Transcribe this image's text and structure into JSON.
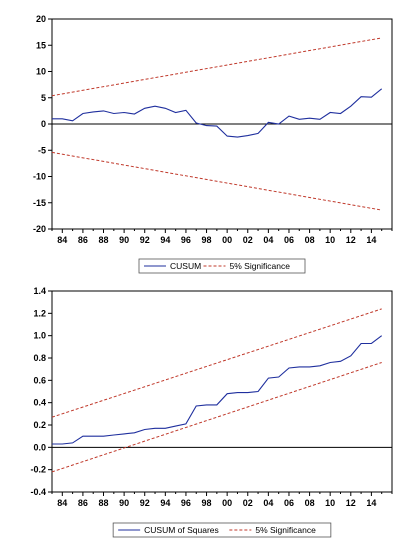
{
  "chart_data": [
    {
      "type": "line",
      "title": "",
      "xlabel": "",
      "ylabel": "",
      "ylim": [
        -20,
        20
      ],
      "xlim": [
        1983,
        2016
      ],
      "y_ticks": [
        -20,
        -15,
        -10,
        -5,
        0,
        5,
        10,
        15,
        20
      ],
      "x_ticks": [
        "84",
        "86",
        "88",
        "90",
        "92",
        "94",
        "96",
        "98",
        "00",
        "02",
        "04",
        "06",
        "08",
        "10",
        "12",
        "14"
      ],
      "x_tick_years": [
        1984,
        1986,
        1988,
        1990,
        1992,
        1994,
        1996,
        1998,
        2000,
        2002,
        2004,
        2006,
        2008,
        2010,
        2012,
        2014
      ],
      "legend_position": "bottom-center",
      "zero_line": true,
      "colors": {
        "series": "#1f2f9e",
        "band": "#c0392b",
        "axis": "#000000"
      },
      "series": [
        {
          "name": "CUSUM",
          "style": "solid",
          "x": [
            1983,
            1984,
            1985,
            1986,
            1987,
            1988,
            1989,
            1990,
            1991,
            1992,
            1993,
            1994,
            1995,
            1996,
            1997,
            1998,
            1999,
            2000,
            2001,
            2002,
            2003,
            2004,
            2005,
            2006,
            2007,
            2008,
            2009,
            2010,
            2011,
            2012,
            2013,
            2014,
            2015
          ],
          "y": [
            1.0,
            1.0,
            0.6,
            2.0,
            2.3,
            2.5,
            2.0,
            2.2,
            1.9,
            3.0,
            3.4,
            3.0,
            2.2,
            2.6,
            0.2,
            -0.3,
            -0.4,
            -2.3,
            -2.5,
            -2.2,
            -1.8,
            0.3,
            0.0,
            1.5,
            0.9,
            1.1,
            0.9,
            2.2,
            2.0,
            3.4,
            5.2,
            5.1,
            6.7
          ]
        },
        {
          "name": "5% Significance",
          "style": "dashed",
          "x": [
            1983,
            2015
          ],
          "y": [
            5.4,
            16.4
          ]
        },
        {
          "name": "5% Significance",
          "style": "dashed",
          "show_in_legend": false,
          "x": [
            1983,
            2015
          ],
          "y": [
            -5.4,
            -16.4
          ]
        }
      ]
    },
    {
      "type": "line",
      "title": "",
      "xlabel": "",
      "ylabel": "",
      "ylim": [
        -0.4,
        1.4
      ],
      "xlim": [
        1983,
        2016
      ],
      "y_ticks": [
        "-0.4",
        "-0.2",
        "0.0",
        "0.2",
        "0.4",
        "0.6",
        "0.8",
        "1.0",
        "1.2",
        "1.4"
      ],
      "y_tick_values": [
        -0.4,
        -0.2,
        0.0,
        0.2,
        0.4,
        0.6,
        0.8,
        1.0,
        1.2,
        1.4
      ],
      "x_ticks": [
        "84",
        "86",
        "88",
        "90",
        "92",
        "94",
        "96",
        "98",
        "00",
        "02",
        "04",
        "06",
        "08",
        "10",
        "12",
        "14"
      ],
      "x_tick_years": [
        1984,
        1986,
        1988,
        1990,
        1992,
        1994,
        1996,
        1998,
        2000,
        2002,
        2004,
        2006,
        2008,
        2010,
        2012,
        2014
      ],
      "legend_position": "bottom-center",
      "zero_line": true,
      "colors": {
        "series": "#1f2f9e",
        "band": "#c0392b",
        "axis": "#000000"
      },
      "series": [
        {
          "name": "CUSUM of Squares",
          "style": "solid",
          "x": [
            1983,
            1984,
            1985,
            1986,
            1987,
            1988,
            1989,
            1990,
            1991,
            1992,
            1993,
            1994,
            1995,
            1996,
            1997,
            1998,
            1999,
            2000,
            2001,
            2002,
            2003,
            2004,
            2005,
            2006,
            2007,
            2008,
            2009,
            2010,
            2011,
            2012,
            2013,
            2014,
            2015
          ],
          "y": [
            0.03,
            0.03,
            0.04,
            0.1,
            0.1,
            0.1,
            0.11,
            0.12,
            0.13,
            0.16,
            0.17,
            0.17,
            0.19,
            0.21,
            0.37,
            0.38,
            0.38,
            0.48,
            0.49,
            0.49,
            0.5,
            0.62,
            0.63,
            0.71,
            0.72,
            0.72,
            0.73,
            0.76,
            0.77,
            0.82,
            0.93,
            0.93,
            1.0
          ]
        },
        {
          "name": "5% Significance",
          "style": "dashed",
          "x": [
            1983,
            2015
          ],
          "y": [
            0.27,
            1.24
          ]
        },
        {
          "name": "5% Significance",
          "style": "dashed",
          "show_in_legend": false,
          "x": [
            1983,
            2015
          ],
          "y": [
            -0.22,
            0.76
          ]
        }
      ]
    }
  ]
}
